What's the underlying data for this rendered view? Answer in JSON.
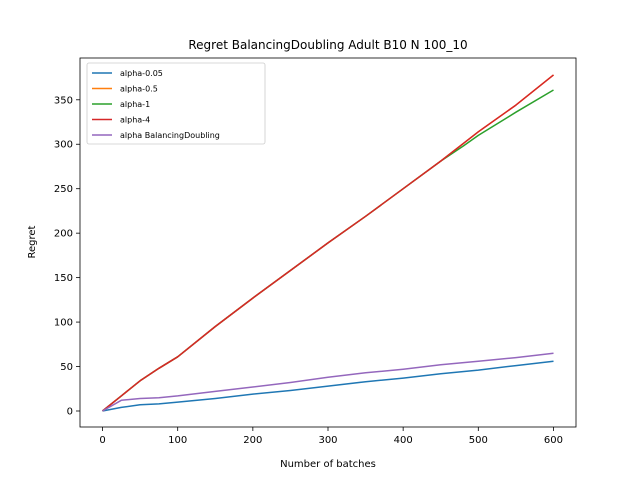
{
  "chart_data": {
    "type": "line",
    "title": "Regret BalancingDoubling Adult B10 N 100_10",
    "xlabel": "Number of batches",
    "ylabel": "Regret",
    "xlim": [
      -30,
      630
    ],
    "ylim": [
      -18,
      397
    ],
    "xticks": [
      0,
      100,
      200,
      300,
      400,
      500,
      600
    ],
    "yticks": [
      0,
      50,
      100,
      150,
      200,
      250,
      300,
      350
    ],
    "grid": false,
    "legend_position": "top-left",
    "series": [
      {
        "name": "alpha-0.05",
        "color": "#1f77b4",
        "x": [
          0,
          25,
          50,
          75,
          100,
          150,
          200,
          250,
          300,
          350,
          400,
          450,
          500,
          550,
          600
        ],
        "y": [
          0,
          4,
          7,
          8,
          10,
          14,
          19,
          23,
          28,
          33,
          37,
          42,
          46,
          51,
          56
        ]
      },
      {
        "name": "alpha-0.5",
        "color": "#ff7f0e",
        "x": [
          0,
          25,
          50,
          75,
          100,
          150,
          200,
          250,
          300,
          350,
          400,
          450,
          500,
          550,
          600
        ],
        "y": [
          0,
          17,
          34,
          48,
          61,
          95,
          127,
          158,
          189,
          219,
          250,
          281,
          314,
          344,
          378
        ]
      },
      {
        "name": "alpha-1",
        "color": "#2ca02c",
        "x": [
          0,
          25,
          50,
          75,
          100,
          150,
          200,
          250,
          300,
          350,
          400,
          450,
          480,
          500,
          550,
          600
        ],
        "y": [
          0,
          17,
          34,
          48,
          61,
          95,
          127,
          158,
          189,
          219,
          250,
          281,
          298,
          310,
          336,
          361
        ]
      },
      {
        "name": "alpha-4",
        "color": "#d62728",
        "x": [
          0,
          25,
          50,
          75,
          100,
          150,
          200,
          250,
          300,
          350,
          400,
          450,
          500,
          550,
          600
        ],
        "y": [
          0,
          17,
          34,
          48,
          61,
          95,
          127,
          158,
          189,
          219,
          250,
          281,
          314,
          344,
          378
        ]
      },
      {
        "name": "alpha BalancingDoubling",
        "color": "#9467bd",
        "x": [
          0,
          25,
          50,
          75,
          100,
          150,
          200,
          250,
          300,
          350,
          400,
          450,
          500,
          550,
          600
        ],
        "y": [
          0,
          12,
          14,
          15,
          17,
          22,
          27,
          32,
          38,
          43,
          47,
          52,
          56,
          60,
          65
        ]
      }
    ]
  }
}
